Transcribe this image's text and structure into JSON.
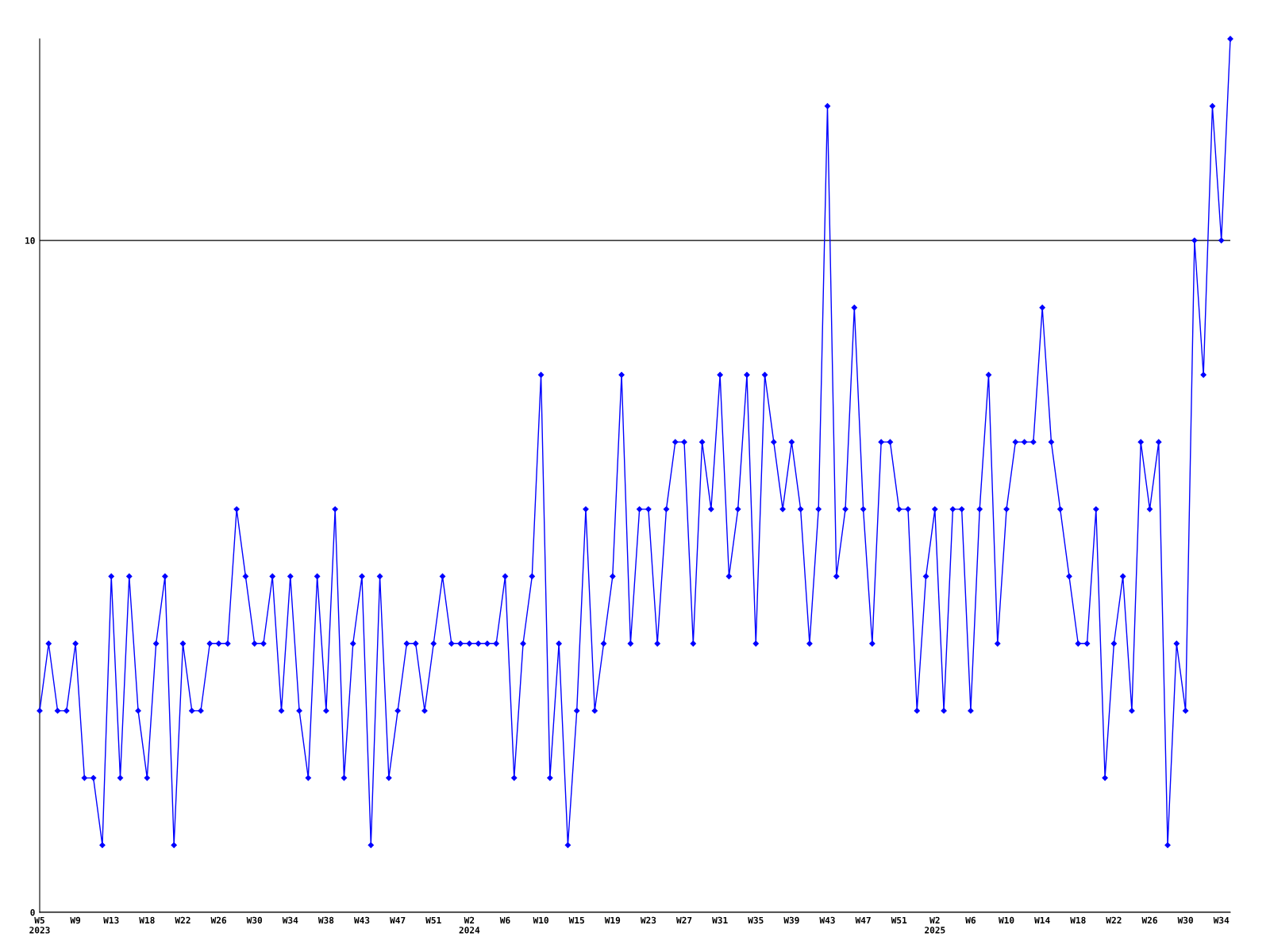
{
  "chart_data": {
    "type": "line",
    "categories": [
      "W5\n2023",
      null,
      null,
      null,
      "W9",
      null,
      null,
      null,
      "W13",
      null,
      null,
      null,
      "W18",
      null,
      null,
      null,
      "W22",
      null,
      null,
      null,
      "W26",
      null,
      null,
      null,
      "W30",
      null,
      null,
      null,
      "W34",
      null,
      null,
      null,
      "W38",
      null,
      null,
      null,
      "W43",
      null,
      null,
      null,
      "W47",
      null,
      null,
      null,
      "W51",
      null,
      null,
      null,
      "W2\n2024",
      null,
      null,
      null,
      "W6",
      null,
      null,
      null,
      "W10",
      null,
      null,
      null,
      "W15",
      null,
      null,
      null,
      "W19",
      null,
      null,
      null,
      "W23",
      null,
      null,
      null,
      "W27",
      null,
      null,
      null,
      "W31",
      null,
      null,
      null,
      "W35",
      null,
      null,
      null,
      "W39",
      null,
      null,
      null,
      "W43",
      null,
      null,
      null,
      "W47",
      null,
      null,
      null,
      "W51",
      null,
      null,
      null,
      "W2\n2025",
      null,
      null,
      null,
      "W6",
      null,
      null,
      null,
      "W10",
      null,
      null,
      null,
      "W14",
      null,
      null,
      null,
      "W18",
      null,
      null,
      null,
      "W22",
      null,
      null,
      null,
      "W26",
      null,
      null,
      null,
      "W30",
      null,
      null,
      null,
      "W34",
      null
    ],
    "series": [
      {
        "color": "#0000ff",
        "values": [
          3,
          4,
          3,
          3,
          4,
          2,
          2,
          1,
          5,
          2,
          5,
          3,
          2,
          4,
          5,
          1,
          4,
          3,
          3,
          4,
          4,
          4,
          6,
          5,
          4,
          4,
          5,
          3,
          5,
          3,
          2,
          5,
          3,
          6,
          2,
          4,
          5,
          1,
          5,
          2,
          3,
          4,
          4,
          3,
          4,
          5,
          4,
          4,
          4,
          4,
          4,
          4,
          5,
          2,
          4,
          5,
          8,
          2,
          4,
          1,
          3,
          6,
          3,
          4,
          5,
          8,
          4,
          6,
          6,
          4,
          6,
          7,
          7,
          4,
          7,
          6,
          8,
          5,
          6,
          8,
          4,
          8,
          7,
          6,
          7,
          6,
          4,
          6,
          12,
          5,
          6,
          9,
          6,
          4,
          7,
          7,
          6,
          6,
          3,
          5,
          6,
          3,
          6,
          6,
          3,
          6,
          8,
          4,
          6,
          7,
          7,
          7,
          9,
          7,
          6,
          5,
          4,
          4,
          6,
          2,
          4,
          5,
          3,
          7,
          6,
          7,
          1,
          4,
          3,
          10,
          8,
          12,
          10,
          13
        ]
      }
    ],
    "ylim": [
      0,
      13
    ],
    "yticks": [
      0,
      10
    ],
    "grid": "y",
    "marker": "diamond",
    "line_style": "solid",
    "legend": false
  }
}
